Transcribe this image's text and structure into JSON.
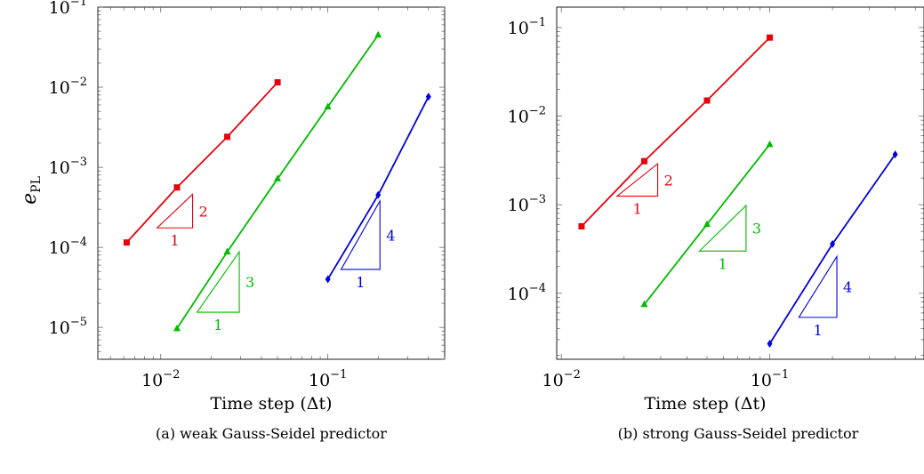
{
  "chart_data": [
    {
      "type": "line",
      "caption": "(a) weak Gauss-Seidel predictor",
      "xlabel": "Time step (Δt)",
      "ylabel": "e",
      "ylabel_subscript": "PL",
      "xscale": "log",
      "yscale": "log",
      "xlim": [
        0.0042,
        0.5
      ],
      "ylim": [
        4e-06,
        0.1
      ],
      "xticks": [
        {
          "base": "10",
          "exp": "−2"
        },
        {
          "base": "10",
          "exp": "−1"
        }
      ],
      "yticks": [
        {
          "base": "10",
          "exp": "−5"
        },
        {
          "base": "10",
          "exp": "−4"
        },
        {
          "base": "10",
          "exp": "−3"
        },
        {
          "base": "10",
          "exp": "−2"
        },
        {
          "base": "10",
          "exp": "−1"
        }
      ],
      "grid": false,
      "series": [
        {
          "color": "#e8000b",
          "marker": "square",
          "x": [
            0.00625,
            0.0125,
            0.025,
            0.05
          ],
          "y": [
            0.000115,
            0.00056,
            0.0024,
            0.0115
          ]
        },
        {
          "color": "#00bb00",
          "marker": "triangle",
          "x": [
            0.0125,
            0.025,
            0.05,
            0.1,
            0.2
          ],
          "y": [
            9.7e-06,
            8.8e-05,
            0.00072,
            0.0057,
            0.045
          ]
        },
        {
          "color": "#0000dd",
          "marker": "diamond",
          "x": [
            0.1,
            0.2,
            0.4
          ],
          "y": [
            4e-05,
            0.00045,
            0.0076
          ]
        }
      ],
      "slope_triangles": [
        {
          "color": "#e8000b",
          "x0": 0.0095,
          "x1": 0.0155,
          "y0": 0.000175,
          "y1": 0.00046,
          "run_label": "1",
          "rise_label": "2"
        },
        {
          "color": "#00bb00",
          "x0": 0.0165,
          "x1": 0.0295,
          "y0": 1.55e-05,
          "y1": 8.8e-05,
          "run_label": "1",
          "rise_label": "3"
        },
        {
          "color": "#0000dd",
          "x0": 0.12,
          "x1": 0.205,
          "y0": 5.3e-05,
          "y1": 0.00038,
          "run_label": "1",
          "rise_label": "4"
        }
      ]
    },
    {
      "type": "line",
      "caption": "(b) strong Gauss-Seidel predictor",
      "xlabel": "Time step (Δt)",
      "ylabel": "",
      "xscale": "log",
      "yscale": "log",
      "xlim": [
        0.0095,
        0.55
      ],
      "ylim": [
        1.8e-05,
        0.17
      ],
      "xticks": [
        {
          "base": "10",
          "exp": "−2"
        },
        {
          "base": "10",
          "exp": "−1"
        }
      ],
      "yticks": [
        {
          "base": "10",
          "exp": "−4"
        },
        {
          "base": "10",
          "exp": "−3"
        },
        {
          "base": "10",
          "exp": "−2"
        },
        {
          "base": "10",
          "exp": "−1"
        }
      ],
      "grid": false,
      "series": [
        {
          "color": "#e8000b",
          "marker": "square",
          "x": [
            0.0125,
            0.025,
            0.05,
            0.1
          ],
          "y": [
            0.00057,
            0.0031,
            0.015,
            0.077
          ]
        },
        {
          "color": "#00bb00",
          "marker": "triangle",
          "x": [
            0.025,
            0.05,
            0.1
          ],
          "y": [
            7.5e-05,
            0.0006,
            0.0048
          ]
        },
        {
          "color": "#0000dd",
          "marker": "diamond",
          "x": [
            0.1,
            0.2,
            0.4
          ],
          "y": [
            2.7e-05,
            0.00036,
            0.0037
          ]
        }
      ],
      "slope_triangles": [
        {
          "color": "#e8000b",
          "x0": 0.0185,
          "x1": 0.029,
          "y0": 0.00125,
          "y1": 0.0029,
          "run_label": "1",
          "rise_label": "2"
        },
        {
          "color": "#00bb00",
          "x0": 0.046,
          "x1": 0.077,
          "y0": 0.0003,
          "y1": 0.00098,
          "run_label": "1",
          "rise_label": "3"
        },
        {
          "color": "#0000dd",
          "x0": 0.138,
          "x1": 0.21,
          "y0": 5.35e-05,
          "y1": 0.00026,
          "run_label": "1",
          "rise_label": "4"
        }
      ]
    }
  ]
}
